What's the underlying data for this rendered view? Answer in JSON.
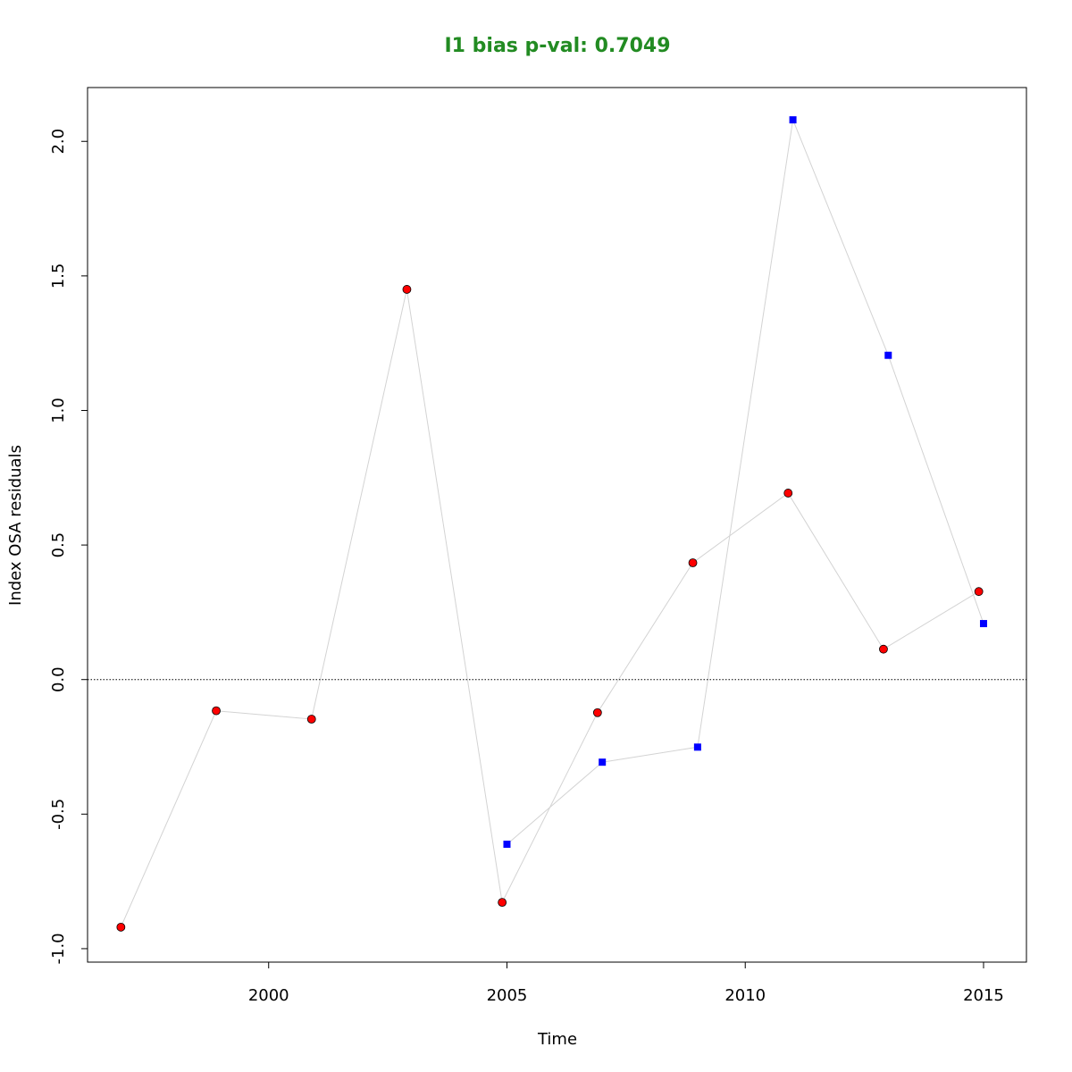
{
  "chart_data": {
    "type": "scatter",
    "title": "I1 bias p-val: 0.7049",
    "title_color": "#228B22",
    "xlabel": "Time",
    "ylabel": "Index OSA residuals",
    "xlim": [
      1996.2,
      2015.9
    ],
    "ylim": [
      -1.05,
      2.2
    ],
    "x_ticks": [
      2000,
      2005,
      2010,
      2015
    ],
    "y_ticks": [
      -1.0,
      -0.5,
      0.0,
      0.5,
      1.0,
      1.5,
      2.0
    ],
    "x_tick_labels": [
      "2000",
      "2005",
      "2010",
      "2015"
    ],
    "y_tick_labels": [
      "-1.0",
      "-0.5",
      "0.0",
      "0.5",
      "1.0",
      "1.5",
      "2.0"
    ],
    "reference_line": {
      "y": 0,
      "style": "dotted"
    },
    "grid": false,
    "connector_color": "#d3d3d3",
    "series": [
      {
        "marker": "circle",
        "fill": "#ff0000",
        "x": [
          1996.9,
          1998.9,
          2000.9,
          2002.9,
          2004.9,
          2006.9,
          2008.9,
          2010.9,
          2012.9,
          2014.9
        ],
        "y": [
          -0.92,
          -0.116,
          -0.147,
          1.45,
          -0.828,
          -0.123,
          0.434,
          0.693,
          0.113,
          0.327
        ]
      },
      {
        "marker": "square",
        "fill": "#0000ff",
        "x": [
          2005.0,
          2007.0,
          2009.0,
          2011.0,
          2013.0,
          2015.0
        ],
        "y": [
          -0.612,
          -0.307,
          -0.251,
          2.08,
          1.205,
          0.208
        ]
      }
    ]
  }
}
